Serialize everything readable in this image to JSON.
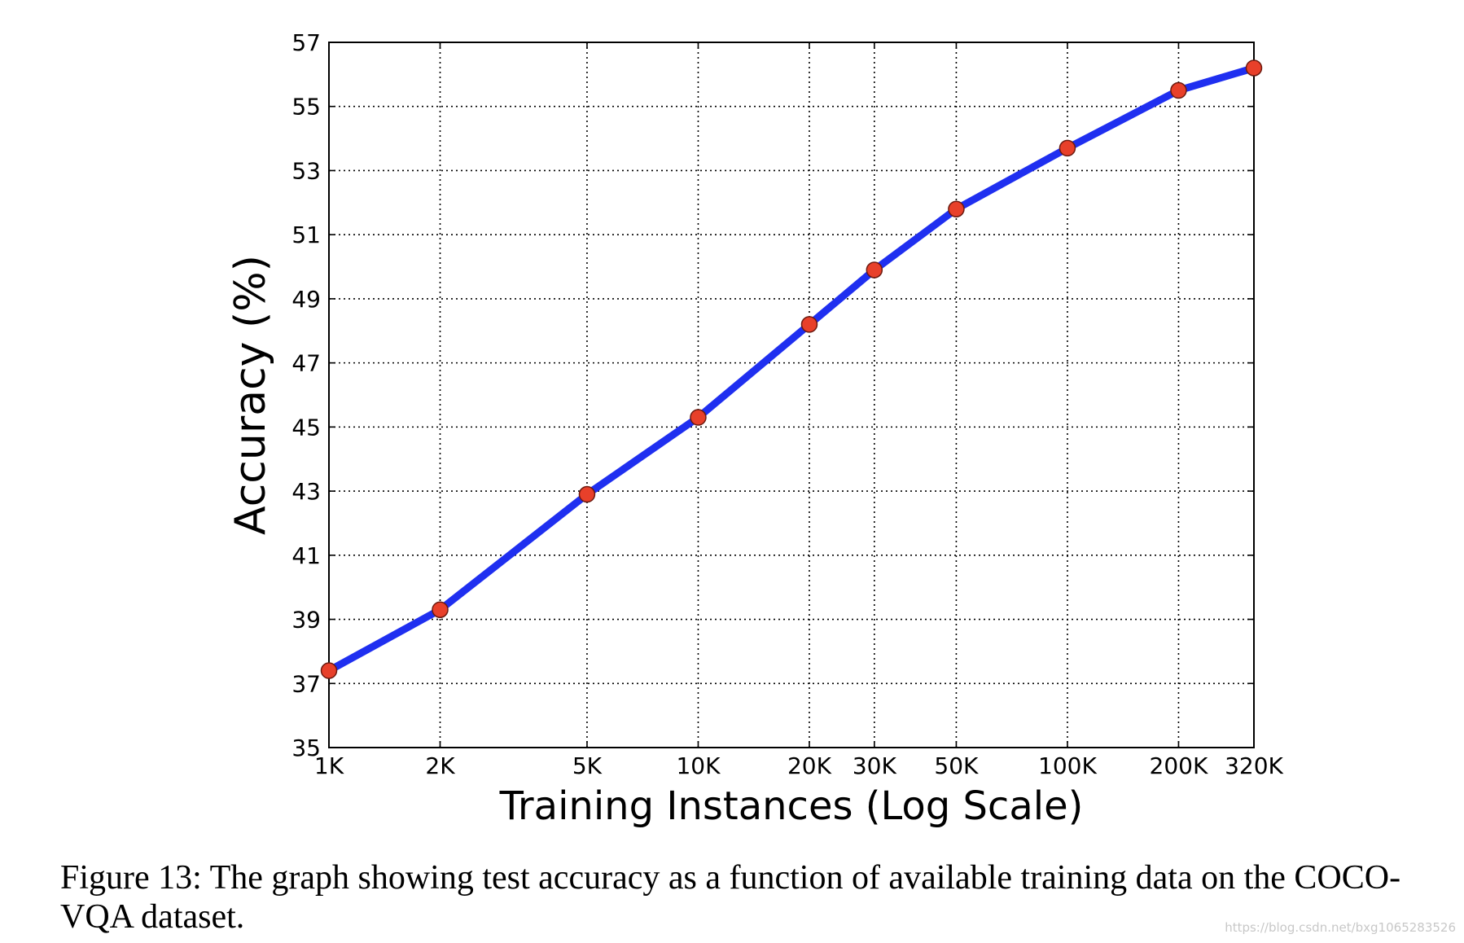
{
  "chart_data": {
    "type": "line",
    "x": [
      1000,
      2000,
      5000,
      10000,
      20000,
      30000,
      50000,
      100000,
      200000,
      320000
    ],
    "x_tick_values": [
      1000,
      2000,
      5000,
      10000,
      20000,
      30000,
      50000,
      100000,
      200000,
      320000
    ],
    "x_tick_labels": [
      "1K",
      "2K",
      "5K",
      "10K",
      "20K",
      "30K",
      "50K",
      "100K",
      "200K",
      "320K"
    ],
    "xscale": "log",
    "xlim": [
      1000,
      320000
    ],
    "series": [
      {
        "values": [
          37.4,
          39.3,
          42.9,
          45.3,
          48.2,
          49.9,
          51.8,
          53.7,
          55.5,
          56.2
        ],
        "line_color": "#1f2ff0",
        "marker_color": "#e8402a"
      }
    ],
    "y_ticks": [
      35,
      37,
      39,
      41,
      43,
      45,
      47,
      49,
      51,
      53,
      55,
      57
    ],
    "ylim": [
      35,
      57
    ],
    "xlabel": "Training Instances (Log Scale)",
    "ylabel": "Accuracy (%)",
    "grid": true
  },
  "caption": "Figure 13: The graph showing test accuracy as a function of available training data on the COCO-VQA dataset.",
  "watermark": "https://blog.csdn.net/bxg1065283526"
}
